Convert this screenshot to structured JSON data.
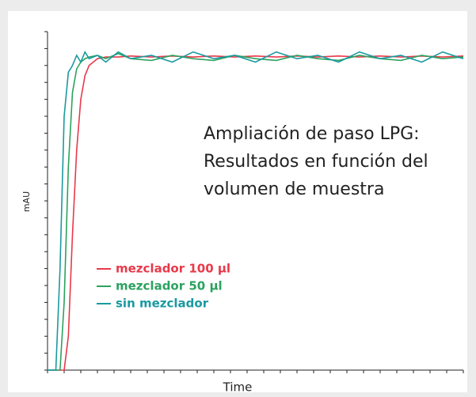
{
  "chart_data": {
    "type": "line",
    "annotation": [
      "Ampliación de paso LPG:",
      "Resultados en función del",
      "volumen de muestra"
    ],
    "x_label": "Time",
    "y_label": "mAU",
    "x": [
      0,
      2,
      3,
      4,
      5,
      6,
      7,
      8,
      9,
      10,
      12,
      14,
      17,
      20,
      25,
      30,
      35,
      40,
      45,
      50,
      55,
      60,
      65,
      70,
      75,
      80,
      85,
      90,
      95,
      100
    ],
    "series": [
      {
        "name": "mezclador 100 µl",
        "color": "#e8394a",
        "values": [
          0,
          0,
          0,
          0,
          10,
          40,
          65,
          80,
          87,
          90,
          92,
          92.5,
          92.5,
          92.8,
          92.5,
          92.8,
          92.5,
          92.8,
          92.5,
          92.8,
          92.5,
          92.8,
          92.5,
          92.8,
          92.5,
          92.8,
          92.5,
          92.8,
          92.5,
          92.8
        ]
      },
      {
        "name": "mezclador 50 µl",
        "color": "#2ca25f",
        "values": [
          0,
          0,
          0,
          20,
          60,
          82,
          89,
          91,
          92,
          92.5,
          93,
          92,
          93.5,
          92,
          91.5,
          93,
          92,
          91.5,
          93,
          92,
          91.5,
          93,
          92,
          91.5,
          93,
          92,
          91.5,
          93,
          92,
          92.5
        ]
      },
      {
        "name": "sin mezclador",
        "color": "#1a9aa0",
        "values": [
          0,
          0,
          30,
          75,
          88,
          90,
          93,
          91,
          94,
          92,
          93,
          91,
          94,
          92,
          93,
          91,
          94,
          92,
          93,
          91,
          94,
          92,
          93,
          91,
          94,
          92,
          93,
          91,
          94,
          92
        ]
      }
    ],
    "xlim": [
      0,
      100
    ],
    "ylim": [
      0,
      100
    ],
    "xticks": [
      0,
      4,
      8,
      12,
      16,
      20,
      24,
      28,
      32,
      36,
      40,
      44,
      48,
      52,
      56,
      60,
      64,
      68,
      72,
      76,
      80,
      84,
      88,
      92,
      96,
      100
    ],
    "yticks": [
      0,
      5,
      10,
      15,
      20,
      25,
      30,
      35,
      40,
      45,
      50,
      55,
      60,
      65,
      70,
      75,
      80,
      85,
      90,
      95,
      100
    ],
    "grid": false
  }
}
